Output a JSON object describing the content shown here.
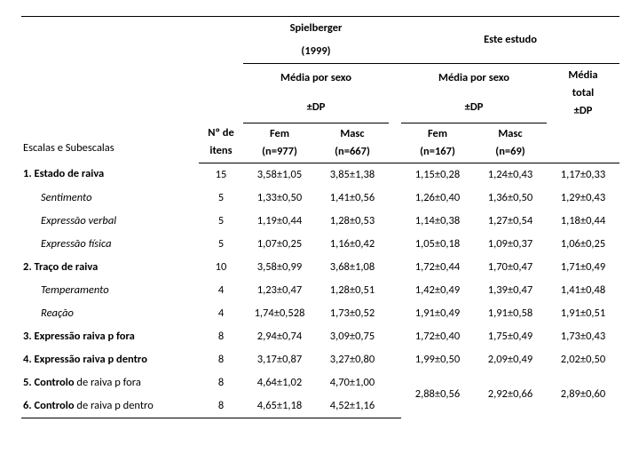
{
  "header": {
    "study1": {
      "line1": "Spielberger",
      "line2": "(1999)"
    },
    "study2": "Este estudo",
    "mediasex": {
      "line1": "Média por sexo",
      "line2": "±DP"
    },
    "mediatotal": {
      "line1": "Média",
      "line2": "total",
      "line3": "±DP"
    },
    "subhead": {
      "nitens": {
        "line1": "Nº de",
        "line2": "itens"
      },
      "fem1": {
        "line1": "Fem",
        "line2": "(n=977)"
      },
      "masc1": {
        "line1": "Masc",
        "line2": "(n=667)"
      },
      "fem2": {
        "line1": "Fem",
        "line2": "(n=167)"
      },
      "masc2": {
        "line1": "Masc",
        "line2": "(n=69)"
      }
    },
    "corner": "Escalas e Subescalas"
  },
  "rows": [
    {
      "label": "1. Estado de raiva",
      "bold": true,
      "n": "15",
      "f1": "3,58±1,05",
      "m1": "3,85±1,38",
      "f2": "1,15±0,28",
      "m2": "1,24±0,43",
      "tot": "1,17±0,33"
    },
    {
      "label": "Sentimento",
      "sub": true,
      "n": "5",
      "f1": "1,33±0,50",
      "m1": "1,41±0,56",
      "f2": "1,26±0,40",
      "m2": "1,36±0,50",
      "tot": "1,29±0,43"
    },
    {
      "label": "Expressão verbal",
      "sub": true,
      "n": "5",
      "f1": "1,19±0,44",
      "m1": "1,28±0,53",
      "f2": "1,14±0,38",
      "m2": "1,27±0,54",
      "tot": "1,18±0,44"
    },
    {
      "label": "Expressão física",
      "sub": true,
      "n": "5",
      "f1": "1,07±0,25",
      "m1": "1,16±0,42",
      "f2": "1,05±0,18",
      "m2": "1,09±0,37",
      "tot": "1,06±0,25"
    },
    {
      "label": "2. Traço de raiva",
      "bold": true,
      "n": "10",
      "f1": "3,58±0,99",
      "m1": "3,68±1,08",
      "f2": "1,72±0,44",
      "m2": "1,70±0,47",
      "tot": "1,71±0,49"
    },
    {
      "label": "Temperamento",
      "sub": true,
      "n": "4",
      "f1": "1,23±0,47",
      "m1": "1,28±0,51",
      "f2": "1,42±0,49",
      "m2": "1,39±0,47",
      "tot": "1,41±0,48"
    },
    {
      "label": "Reação",
      "sub": true,
      "n": "4",
      "f1": "1,74±0,528",
      "m1": "1,73±0,52",
      "f2": "1,91±0,49",
      "m2": "1,91±0,58",
      "tot": "1,91±0,51"
    },
    {
      "label": "3. Expressão raiva p fora",
      "bold": true,
      "n": "8",
      "f1": "2,94±0,74",
      "m1": "3,09±0,75",
      "f2": "1,72±0,40",
      "m2": "1,75±0,49",
      "tot": "1,73±0,43"
    },
    {
      "label": "4. Expressão raiva p dentro",
      "bold": true,
      "n": "8",
      "f1": "3,17±0,87",
      "m1": "3,27±0,80",
      "f2": "1,99±0,50",
      "m2": "2,09±0,49",
      "tot": "2,02±0,50"
    }
  ],
  "merged": {
    "row5": {
      "label_pre": "5. Controlo",
      "label_post": " de raiva p fora",
      "n": "8",
      "f1": "4,64±1,02",
      "m1": "4,70±1,00"
    },
    "row6": {
      "label_pre": "6. Controlo",
      "label_post": " de raiva p dentro",
      "n": "8",
      "f1": "4,65±1,18",
      "m1": "4,52±1,16"
    },
    "shared": {
      "f2": "2,88±0,56",
      "m2": "2,92±0,66",
      "tot": "2,89±0,60"
    }
  },
  "style": {
    "font": "Calibri",
    "font_size_pt": 10,
    "text_color": "#000000",
    "background": "#ffffff",
    "rule_color": "#000000"
  }
}
